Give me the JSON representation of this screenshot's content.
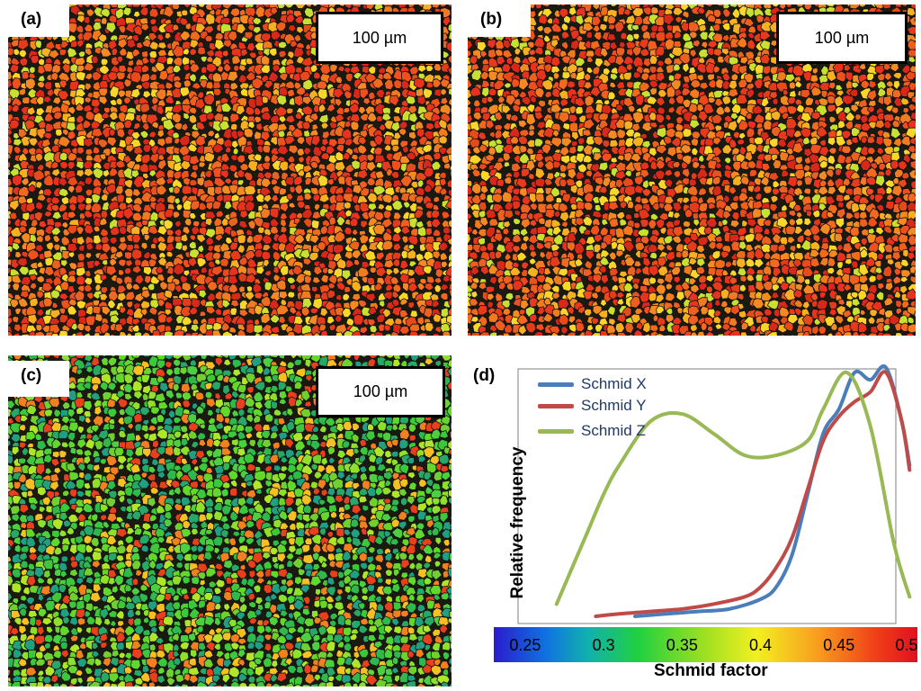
{
  "panels": {
    "a": {
      "label": "(a)",
      "scale": "100 µm",
      "palette": "warm"
    },
    "b": {
      "label": "(b)",
      "scale": "100 µm",
      "palette": "warm"
    },
    "c": {
      "label": "(c)",
      "scale": "100 µm",
      "palette": "green"
    },
    "d": {
      "label": "(d)"
    }
  },
  "colors": {
    "schmid_x": "#4a7ebb",
    "schmid_y": "#be4b48",
    "schmid_z": "#98b954"
  },
  "chart_data": {
    "type": "line",
    "xlabel": "Schmid factor",
    "ylabel": "Relative frequency",
    "xlim": [
      0.23,
      0.5
    ],
    "xticks": [
      "0.25",
      "0.3",
      "0.35",
      "0.4",
      "0.45",
      "0.5"
    ],
    "xtick_values": [
      0.25,
      0.3,
      0.35,
      0.4,
      0.45,
      0.5
    ],
    "colorbar": true,
    "legend_position": "top-left",
    "series": [
      {
        "name": "Schmid X",
        "color_key": "schmid_x",
        "x": [
          0.32,
          0.34,
          0.36,
          0.38,
          0.4,
          0.41,
          0.42,
          0.43,
          0.44,
          0.45,
          0.46,
          0.47,
          0.48,
          0.49,
          0.495
        ],
        "y": [
          0.0,
          0.01,
          0.02,
          0.03,
          0.07,
          0.12,
          0.25,
          0.5,
          0.75,
          0.85,
          1.0,
          0.97,
          1.02,
          0.8,
          0.62
        ]
      },
      {
        "name": "Schmid Y",
        "color_key": "schmid_y",
        "x": [
          0.295,
          0.31,
          0.33,
          0.35,
          0.37,
          0.39,
          0.4,
          0.41,
          0.42,
          0.43,
          0.44,
          0.45,
          0.46,
          0.47,
          0.48,
          0.49,
          0.495
        ],
        "y": [
          0.0,
          0.01,
          0.02,
          0.03,
          0.05,
          0.08,
          0.12,
          0.2,
          0.32,
          0.52,
          0.72,
          0.82,
          0.88,
          0.92,
          1.0,
          0.8,
          0.6
        ]
      },
      {
        "name": "Schmid Z",
        "color_key": "schmid_z",
        "x": [
          0.27,
          0.28,
          0.29,
          0.3,
          0.31,
          0.33,
          0.35,
          0.37,
          0.39,
          0.41,
          0.43,
          0.44,
          0.455,
          0.47,
          0.485,
          0.495
        ],
        "y": [
          0.05,
          0.2,
          0.35,
          0.5,
          0.62,
          0.8,
          0.83,
          0.75,
          0.66,
          0.66,
          0.72,
          0.85,
          1.0,
          0.78,
          0.3,
          0.08
        ]
      }
    ]
  }
}
